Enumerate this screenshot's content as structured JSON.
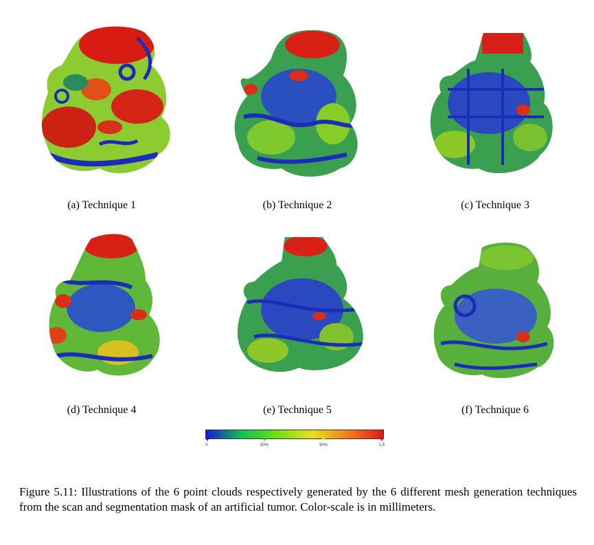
{
  "panels": [
    {
      "label": "(a) Technique 1"
    },
    {
      "label": "(b) Technique 2"
    },
    {
      "label": "(c) Technique 3"
    },
    {
      "label": "(d) Technique 4"
    },
    {
      "label": "(e) Technique 5"
    },
    {
      "label": "(f) Technique 6"
    }
  ],
  "colorbar": {
    "ticks": [
      "0",
      "50%",
      "90%",
      "1.5"
    ],
    "colors": [
      "#1a1ad8",
      "#10c050",
      "#6ee010",
      "#e8e020",
      "#f08020",
      "#e01818"
    ]
  },
  "caption": "Figure 5.11: Illustrations of the 6 point clouds respectively generated by the 6 different mesh generation techniques from the scan and segmentation mask of an artificial tumor. Color-scale is in millimeters."
}
